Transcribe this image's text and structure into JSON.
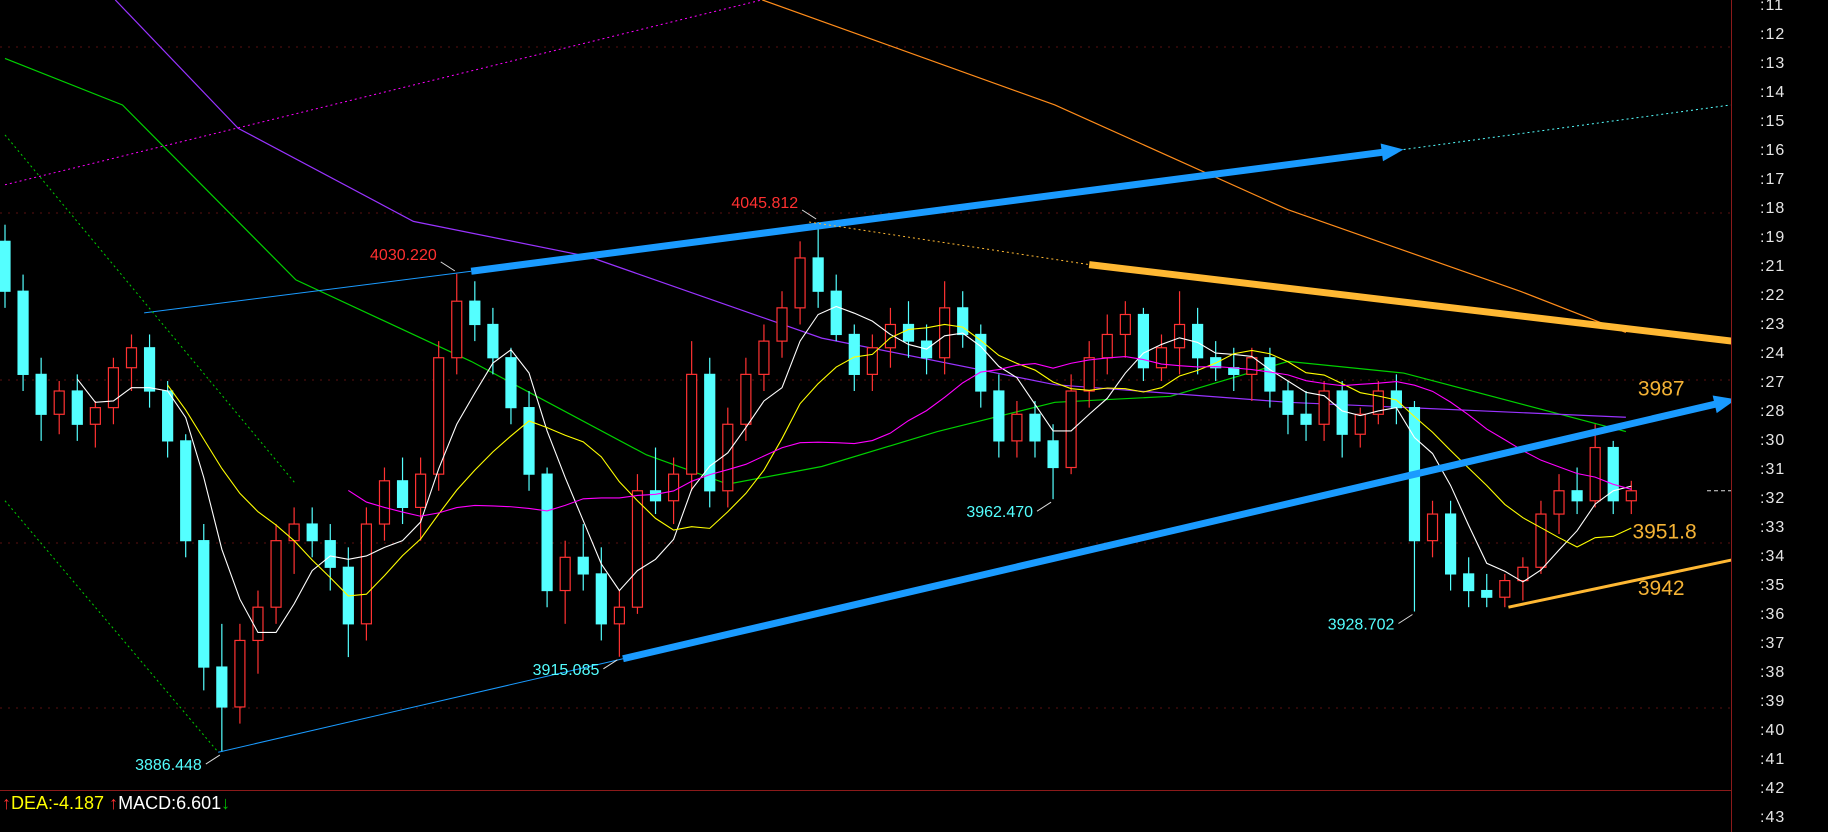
{
  "colors": {
    "background": "#000000",
    "up_candle": "#ff3232",
    "down_candle": "#54ffff",
    "ma5": "#ffffff",
    "ma10": "#ffff00",
    "ma20": "#ff00ff",
    "ma_green": "#00d000",
    "ma_purple": "#9933ff",
    "ma_orange": "#ff8c1a",
    "trend_blue": "#1a9bff",
    "trend_orange": "#ffb833",
    "label_high": "#ff3030",
    "label_low": "#54ffff",
    "target_label": "#f5b335"
  },
  "price_axis": {
    "labels": [
      ":11",
      ":12",
      ":13",
      ":14",
      ":15",
      ":16",
      ":17",
      ":18",
      ":19",
      ":21",
      ":22",
      ":23",
      ":24",
      ":27",
      ":28",
      ":30",
      ":31",
      ":32",
      ":33",
      ":34",
      ":35",
      ":36",
      ":37",
      ":38",
      ":39",
      ":40",
      ":41",
      ":42",
      ":43"
    ]
  },
  "chart_data": {
    "type": "candlestick",
    "ohlc": [
      [
        4040,
        4045,
        4020,
        4025
      ],
      [
        4025,
        4030,
        3995,
        4000
      ],
      [
        4000,
        4005,
        3980,
        3988
      ],
      [
        3988,
        3998,
        3982,
        3995
      ],
      [
        3995,
        4000,
        3980,
        3985
      ],
      [
        3985,
        3992,
        3978,
        3990
      ],
      [
        3990,
        4005,
        3985,
        4002
      ],
      [
        4002,
        4012,
        3995,
        4008
      ],
      [
        4008,
        4012,
        3990,
        3995
      ],
      [
        3995,
        3998,
        3975,
        3980
      ],
      [
        3980,
        3982,
        3945,
        3950
      ],
      [
        3950,
        3955,
        3905,
        3912
      ],
      [
        3912,
        3925,
        3886.448,
        3900
      ],
      [
        3900,
        3925,
        3895,
        3920
      ],
      [
        3920,
        3935,
        3910,
        3930
      ],
      [
        3930,
        3955,
        3925,
        3950
      ],
      [
        3950,
        3960,
        3940,
        3955
      ],
      [
        3955,
        3960,
        3945,
        3950
      ],
      [
        3950,
        3955,
        3935,
        3942
      ],
      [
        3942,
        3948,
        3915,
        3925
      ],
      [
        3925,
        3960,
        3920,
        3955
      ],
      [
        3955,
        3972,
        3950,
        3968
      ],
      [
        3968,
        3975,
        3955,
        3960
      ],
      [
        3960,
        3975,
        3950,
        3970
      ],
      [
        3970,
        4010,
        3965,
        4005
      ],
      [
        4005,
        4030.22,
        4000,
        4022
      ],
      [
        4022,
        4028,
        4010,
        4015
      ],
      [
        4015,
        4020,
        4000,
        4005
      ],
      [
        4005,
        4008,
        3985,
        3990
      ],
      [
        3990,
        3995,
        3965,
        3970
      ],
      [
        3970,
        3972,
        3930,
        3935
      ],
      [
        3935,
        3950,
        3925,
        3945
      ],
      [
        3945,
        3955,
        3935,
        3940
      ],
      [
        3940,
        3948,
        3920,
        3925
      ],
      [
        3925,
        3935,
        3915.085,
        3930
      ],
      [
        3930,
        3970,
        3928,
        3965
      ],
      [
        3965,
        3978,
        3958,
        3962
      ],
      [
        3962,
        3975,
        3955,
        3970
      ],
      [
        3970,
        4010,
        3965,
        4000
      ],
      [
        4000,
        4005,
        3960,
        3965
      ],
      [
        3965,
        3990,
        3960,
        3985
      ],
      [
        3985,
        4005,
        3980,
        4000
      ],
      [
        4000,
        4015,
        3995,
        4010
      ],
      [
        4010,
        4025,
        4005,
        4020
      ],
      [
        4020,
        4040,
        4015,
        4035
      ],
      [
        4035,
        4045.812,
        4020,
        4025
      ],
      [
        4025,
        4030,
        4010,
        4012
      ],
      [
        4012,
        4015,
        3995,
        4000
      ],
      [
        4000,
        4012,
        3995,
        4008
      ],
      [
        4008,
        4020,
        4002,
        4015
      ],
      [
        4015,
        4022,
        4005,
        4010
      ],
      [
        4010,
        4015,
        4000,
        4005
      ],
      [
        4005,
        4028,
        4000,
        4020
      ],
      [
        4020,
        4025,
        4008,
        4012
      ],
      [
        4012,
        4015,
        3990,
        3995
      ],
      [
        3995,
        4000,
        3975,
        3980
      ],
      [
        3980,
        3992,
        3975,
        3988
      ],
      [
        3988,
        3992,
        3975,
        3980
      ],
      [
        3980,
        3985,
        3962.47,
        3972
      ],
      [
        3972,
        4000,
        3970,
        3995
      ],
      [
        3995,
        4010,
        3990,
        4005
      ],
      [
        4005,
        4018,
        4000,
        4012
      ],
      [
        4012,
        4022,
        4005,
        4018
      ],
      [
        4018,
        4020,
        3998,
        4002
      ],
      [
        4002,
        4012,
        3998,
        4008
      ],
      [
        4008,
        4025,
        4000,
        4015
      ],
      [
        4015,
        4020,
        4000,
        4005
      ],
      [
        4005,
        4010,
        3998,
        4002
      ],
      [
        4002,
        4008,
        3995,
        4000
      ],
      [
        4000,
        4008,
        3992,
        4005
      ],
      [
        4005,
        4008,
        3990,
        3995
      ],
      [
        3995,
        3998,
        3982,
        3988
      ],
      [
        3988,
        3995,
        3980,
        3985
      ],
      [
        3985,
        3998,
        3980,
        3995
      ],
      [
        3995,
        3998,
        3975,
        3982
      ],
      [
        3982,
        3990,
        3978,
        3988
      ],
      [
        3988,
        3998,
        3985,
        3995
      ],
      [
        3995,
        4000,
        3985,
        3990
      ],
      [
        3990,
        3992,
        3928.702,
        3950
      ],
      [
        3950,
        3962,
        3945,
        3958
      ],
      [
        3958,
        3962,
        3935,
        3940
      ],
      [
        3940,
        3945,
        3930,
        3935
      ],
      [
        3935,
        3940,
        3930,
        3933
      ],
      [
        3933,
        3940,
        3930,
        3938
      ],
      [
        3938,
        3945,
        3932,
        3942
      ],
      [
        3942,
        3962,
        3940,
        3958
      ],
      [
        3958,
        3970,
        3952,
        3965
      ],
      [
        3965,
        3972,
        3958,
        3962
      ],
      [
        3962,
        3985,
        3960,
        3978
      ],
      [
        3978,
        3980,
        3958,
        3962
      ],
      [
        3962,
        3968,
        3958,
        3965
      ]
    ],
    "moving_averages": [
      {
        "period": 5,
        "color_key": "ma5"
      },
      {
        "period": 10,
        "color_key": "ma10"
      },
      {
        "period": 20,
        "color_key": "ma20"
      }
    ],
    "long_averages": [
      {
        "color_key": "ma_green",
        "points": [
          [
            0,
            4095
          ],
          [
            6.5,
            4081
          ],
          [
            16.1,
            4028.4
          ],
          [
            25.8,
            4003.9
          ],
          [
            35.5,
            3975.8
          ],
          [
            40,
            3967
          ],
          [
            45.2,
            3972.3
          ],
          [
            51.6,
            3982.8
          ],
          [
            58.1,
            3991.6
          ],
          [
            64.5,
            3993.4
          ],
          [
            71,
            4003.9
          ],
          [
            77.4,
            4000.4
          ],
          [
            89.7,
            3982.8
          ]
        ]
      },
      {
        "color_key": "ma_purple",
        "points": [
          [
            6.1,
            4112.6
          ],
          [
            12.9,
            4074
          ],
          [
            22.6,
            4046
          ],
          [
            32.3,
            4035.4
          ],
          [
            45.2,
            4010.9
          ],
          [
            58.1,
            3996.9
          ],
          [
            71,
            3991.6
          ],
          [
            89.7,
            3987.1
          ]
        ]
      },
      {
        "color_key": "ma_orange",
        "points": [
          [
            41.9,
            4112.6
          ],
          [
            58.1,
            4081
          ],
          [
            71,
            4049.5
          ],
          [
            83.9,
            4024.9
          ],
          [
            89.7,
            4012.6
          ]
        ]
      }
    ],
    "trendlines": [
      {
        "color_key": "trend_blue",
        "style": "thin",
        "from": [
          7.7,
          4018.5
        ],
        "to": [
          25.8,
          4031
        ]
      },
      {
        "color_key": "trend_blue",
        "style": "arrow",
        "from": [
          25.8,
          4031
        ],
        "to": [
          77.4,
          4067.6
        ]
      },
      {
        "color_key": "down_candle",
        "style": "dotted",
        "from": [
          77.4,
          4067.6
        ],
        "to": [
          95.5,
          4081
        ]
      },
      {
        "color_key": "trend_blue",
        "style": "thin",
        "from": [
          11.8,
          3886.4
        ],
        "to": [
          34.2,
          3914.5
        ]
      },
      {
        "color_key": "trend_blue",
        "style": "arrow",
        "from": [
          34.2,
          3914.5
        ],
        "to": [
          95.8,
          3992.5
        ]
      },
      {
        "color_key": "trend_orange",
        "style": "thin-dotted",
        "from": [
          44.5,
          4045.8
        ],
        "to": [
          60,
          4033
        ]
      },
      {
        "color_key": "trend_orange",
        "style": "arrow",
        "from": [
          60,
          4033
        ],
        "to": [
          97.1,
          4009
        ]
      },
      {
        "color_key": "trend_orange",
        "style": "thin-arrow",
        "from": [
          83.2,
          3930
        ],
        "to": [
          98,
          3947
        ]
      },
      {
        "color_key": "ma20",
        "style": "dotted",
        "from": [
          0,
          4057
        ],
        "to": [
          41.9,
          4112.6
        ]
      },
      {
        "color_key": "ma_green",
        "style": "dotted",
        "from": [
          0,
          4072
        ],
        "to": [
          16.1,
          3967
        ]
      },
      {
        "color_key": "ma_green",
        "style": "dotted",
        "from": [
          0,
          3962
        ],
        "to": [
          11.8,
          3886.4
        ]
      }
    ],
    "annotations": [
      {
        "text": "4045.812",
        "index": 45,
        "price": 4045.812,
        "color_key": "label_high",
        "side": "left-above"
      },
      {
        "text": "4030.220",
        "index": 25,
        "price": 4030.22,
        "color_key": "label_high",
        "side": "left-above"
      },
      {
        "text": "3962.470",
        "index": 58,
        "price": 3962.47,
        "color_key": "label_low",
        "side": "left-below"
      },
      {
        "text": "3915.085",
        "index": 34,
        "price": 3915.085,
        "color_key": "label_low",
        "side": "left-below"
      },
      {
        "text": "3928.702",
        "index": 78,
        "price": 3928.702,
        "color_key": "label_low",
        "side": "left-below"
      },
      {
        "text": "3886.448",
        "index": 12,
        "price": 3886.448,
        "color_key": "label_low",
        "side": "left-below"
      }
    ],
    "targets": [
      {
        "text": "3987",
        "index": 89.7,
        "price": 3996
      },
      {
        "text": "3951.8",
        "index": 89.4,
        "price": 3953
      },
      {
        "text": "3942",
        "index": 89.7,
        "price": 3936
      }
    ],
    "current_price_marker": 3965
  },
  "macd_legend": {
    "dea": "DEA:-4.187",
    "macd": "MACD:6.601",
    "up_arrow": "↑",
    "down_arrow": "↓"
  }
}
